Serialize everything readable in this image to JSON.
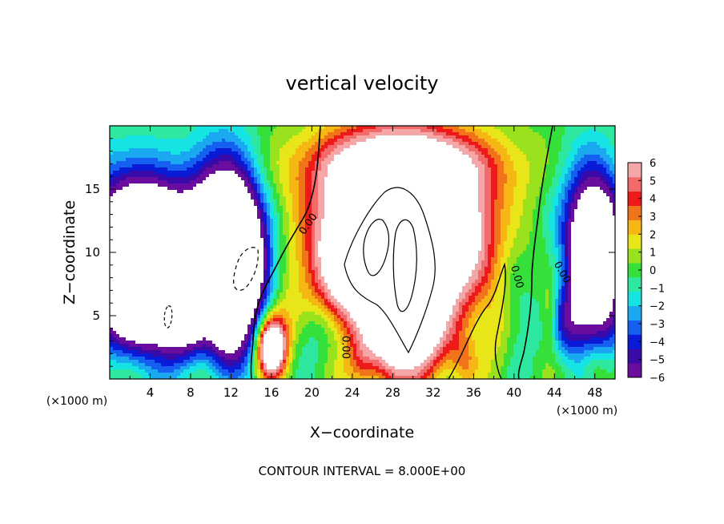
{
  "chart_data": {
    "type": "heatmap",
    "title": "vertical velocity",
    "xlabel": "X−coordinate",
    "ylabel": "Z−coordinate",
    "x_unit": "(×1000 m)",
    "y_unit": "(×1000 m)",
    "xlim": [
      0,
      50
    ],
    "ylim": [
      0,
      20
    ],
    "x_ticks": [
      4,
      8,
      12,
      16,
      20,
      24,
      28,
      32,
      36,
      40,
      44,
      48
    ],
    "y_ticks": [
      5,
      10,
      15
    ],
    "colorbar": {
      "min": -6,
      "max": 6,
      "ticks": [
        6,
        5,
        4,
        3,
        2,
        1,
        0,
        -1,
        -2,
        -3,
        -4,
        -5,
        -6
      ],
      "tick_labels": [
        "6",
        "5",
        "4",
        "3",
        "2",
        "1",
        "0",
        "−1",
        "−2",
        "−3",
        "−4",
        "−5",
        "−6"
      ],
      "colors": [
        "#6a0d9e",
        "#3a0aa8",
        "#0a1bd8",
        "#1560f0",
        "#1aa9f0",
        "#16e4e4",
        "#2ee8a0",
        "#36e03a",
        "#9be21e",
        "#e8e619",
        "#f6b714",
        "#f2741a",
        "#ee1a1a",
        "#f26a6a",
        "#f5a6a6"
      ]
    },
    "saturated_color": "#ffffff",
    "features": [
      {
        "x": 4.5,
        "z": 9.5,
        "sx": 3.2,
        "sz": 3.6,
        "value": -14
      },
      {
        "x": 1.5,
        "z": 12,
        "sx": 3.5,
        "sz": 4,
        "value": -5
      },
      {
        "x": 3,
        "z": 6,
        "sx": 4,
        "sz": 3,
        "value": -6
      },
      {
        "x": 12.5,
        "z": 10,
        "sx": 1.9,
        "sz": 4.5,
        "value": -12
      },
      {
        "x": 10,
        "z": 13,
        "sx": 2,
        "sz": 4,
        "value": -5
      },
      {
        "x": 14,
        "z": 8,
        "sx": 2,
        "sz": 3.5,
        "value": -3
      },
      {
        "x": 7.5,
        "z": 4.5,
        "sx": 1.8,
        "sz": 2.5,
        "value": -4
      },
      {
        "x": 11.5,
        "z": 3,
        "sx": 1.5,
        "sz": 1.8,
        "value": -4
      },
      {
        "x": 48.5,
        "z": 9,
        "sx": 1.8,
        "sz": 4.5,
        "value": -9
      },
      {
        "x": 47,
        "z": 12,
        "sx": 2,
        "sz": 4,
        "value": -5
      },
      {
        "x": 45.5,
        "z": 4.5,
        "sx": 1.5,
        "sz": 2,
        "value": -4
      },
      {
        "x": 20,
        "z": 4,
        "sx": 2,
        "sz": 2,
        "value": -2.5
      },
      {
        "x": 40,
        "z": 4.5,
        "sx": 1.5,
        "sz": 3,
        "value": -1.5
      },
      {
        "x": 28.5,
        "z": 11,
        "sx": 5,
        "sz": 5,
        "value": 16
      },
      {
        "x": 29,
        "z": 16.8,
        "sx": 7,
        "sz": 2,
        "value": 5
      },
      {
        "x": 33.5,
        "z": 12,
        "sx": 2.8,
        "sz": 3,
        "value": 4
      },
      {
        "x": 24,
        "z": 9,
        "sx": 2.5,
        "sz": 3,
        "value": 4
      },
      {
        "x": 28,
        "z": 4,
        "sx": 1.5,
        "sz": 3,
        "value": 6
      },
      {
        "x": 31,
        "z": 4,
        "sx": 1.5,
        "sz": 3,
        "value": 5
      },
      {
        "x": 16,
        "z": 2.6,
        "sx": 1,
        "sz": 1.6,
        "value": 12
      },
      {
        "x": 17.5,
        "z": 5,
        "sx": 1.5,
        "sz": 2,
        "value": 2
      },
      {
        "x": 10,
        "z": 2.5,
        "sx": 1.5,
        "sz": 2,
        "value": 1
      },
      {
        "x": 38.5,
        "z": 3.5,
        "sx": 1,
        "sz": 2.5,
        "value": 1.5
      },
      {
        "x": 43.5,
        "z": 5,
        "sx": 0.6,
        "sz": 2,
        "value": 2.5
      },
      {
        "x": 48,
        "z": 1,
        "sx": 1,
        "sz": 1.2,
        "value": 2
      },
      {
        "x": 25,
        "z": 1.5,
        "sx": 1,
        "sz": 1.5,
        "value": 2
      },
      {
        "x": 35,
        "z": 1.5,
        "sx": 1,
        "sz": 1.5,
        "value": 2
      }
    ],
    "contour_labels": [
      {
        "text": "0.00",
        "x": 19.9,
        "z": 12.1,
        "angle": -55
      },
      {
        "text": "0.00",
        "x": 23,
        "z": 2.5,
        "angle": 90
      },
      {
        "text": "0.00",
        "x": 40,
        "z": 8,
        "angle": 75
      },
      {
        "text": "0.00",
        "x": 44.5,
        "z": 8.3,
        "angle": 60
      }
    ],
    "footer": "CONTOUR INTERVAL = 8.000E+00"
  }
}
